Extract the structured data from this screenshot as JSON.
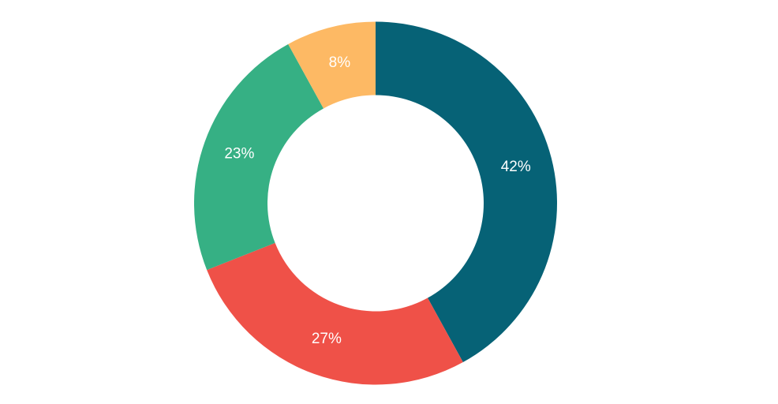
{
  "chart_data": {
    "type": "pie",
    "donut": true,
    "values": [
      42,
      27,
      23,
      8
    ],
    "value_labels": [
      "42%",
      "27%",
      "23%",
      "8%"
    ],
    "colors": [
      "#066276",
      "#ef5148",
      "#36b084",
      "#fdb964"
    ]
  }
}
